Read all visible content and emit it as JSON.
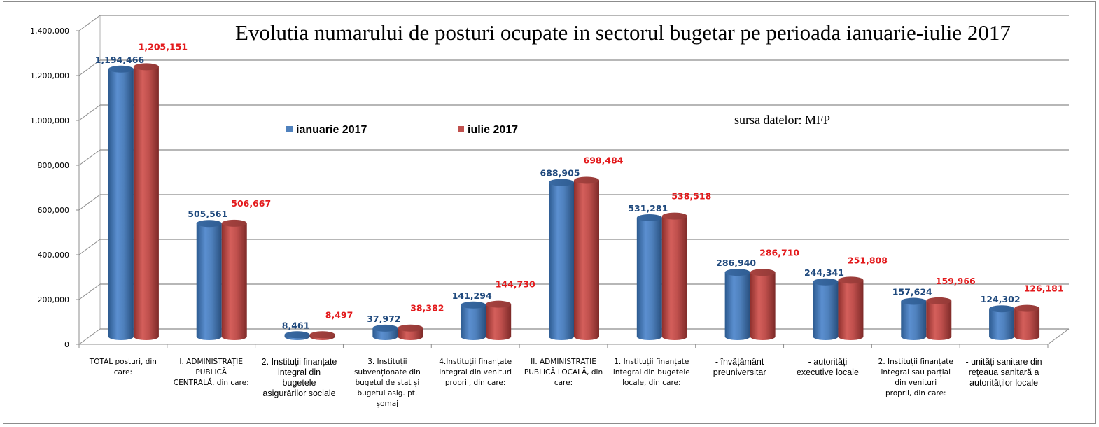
{
  "chart_data": {
    "type": "bar",
    "style": "3d-cylinder",
    "title": "Evolutia numarului de posturi ocupate in sectorul bugetar pe perioada ianuarie-iulie 2017",
    "annotation": "sursa datelor: MFP",
    "xlabel": "",
    "ylabel": "",
    "ylim": [
      0,
      1400000
    ],
    "yticks": [
      0,
      200000,
      400000,
      600000,
      800000,
      1000000,
      1200000,
      1400000
    ],
    "ytick_labels": [
      "0",
      "200,000",
      "400,000",
      "600,000",
      "800,000",
      "1,000,000",
      "1,200,000",
      "1,400,000"
    ],
    "grid": true,
    "legend": {
      "placement": "top-left-inside",
      "orientation": "horizontal"
    },
    "categories": [
      "TOTAL posturi, din care:",
      "I. ADMINISTRAȚIE PUBLICĂ CENTRALĂ, din care:",
      "2. Instituții finanțate integral din bugetele asigurărilor sociale",
      "3. Instituții subvenționate din bugetul de stat și bugetul asig. pt. șomaj",
      "4.Instituții finanțate integral din venituri proprii, din care:",
      "II. ADMINISTRAȚIE PUBLICĂ LOCALĂ, din care:",
      "1. Instituții finanțate integral din bugetele locale, din care:",
      "- învățământ preuniversitar",
      "- autorități executive locale",
      "2. Instituții finanțate integral sau parțial din venituri proprii, din care:",
      "- unități sanitare din rețeaua sanitară a autorităților locale"
    ],
    "category_lines": [
      [
        "TOTAL posturi, din",
        "care:"
      ],
      [
        "I. ADMINISTRAȚIE",
        "PUBLICĂ",
        "CENTRALĂ, din care:"
      ],
      [
        "2. Instituții  finanțate",
        "integral din",
        "bugetele",
        "asigurărilor sociale"
      ],
      [
        "3. Instituții",
        "subvenționate din",
        "bugetul de stat  și",
        "bugetul asig.  pt.",
        "șomaj"
      ],
      [
        "4.Instituții  finanțate",
        "integral din venituri",
        "proprii, din care:"
      ],
      [
        "II. ADMINISTRAȚIE",
        "PUBLICĂ LOCALĂ, din",
        "care:"
      ],
      [
        "1. Instituții  finanțate",
        "integral din bugetele",
        "locale, din care:"
      ],
      [
        "- învățământ",
        "preuniversitar"
      ],
      [
        "- autorități",
        "executive locale"
      ],
      [
        "2. Instituții  finanțate",
        "integral sau parțial",
        "din venituri",
        "proprii, din care:"
      ],
      [
        "- unități  sanitare  din",
        "rețeaua  sanitară  a",
        "autorităților locale"
      ]
    ],
    "series": [
      {
        "name": "ianuarie 2017",
        "color": "#4f81bd",
        "label_color": "#1f497d",
        "values": [
          1194466,
          505561,
          8461,
          37972,
          141294,
          688905,
          531281,
          286940,
          244341,
          157624,
          124302
        ],
        "labels": [
          "1,194,466",
          "505,561",
          "8,461",
          "37,972",
          "141,294",
          "688,905",
          "531,281",
          "286,940",
          "244,341",
          "157,624",
          "124,302"
        ]
      },
      {
        "name": "iulie 2017",
        "color": "#c0504d",
        "label_color": "#e31a1c",
        "values": [
          1205151,
          506667,
          8497,
          38382,
          144730,
          698484,
          538518,
          286710,
          251808,
          159966,
          126181
        ],
        "labels": [
          "1,205,151",
          "506,667",
          "8,497",
          "38,382",
          "144,730",
          "698,484",
          "538,518",
          "286,710",
          "251,808",
          "159,966",
          "126,181"
        ]
      }
    ]
  }
}
